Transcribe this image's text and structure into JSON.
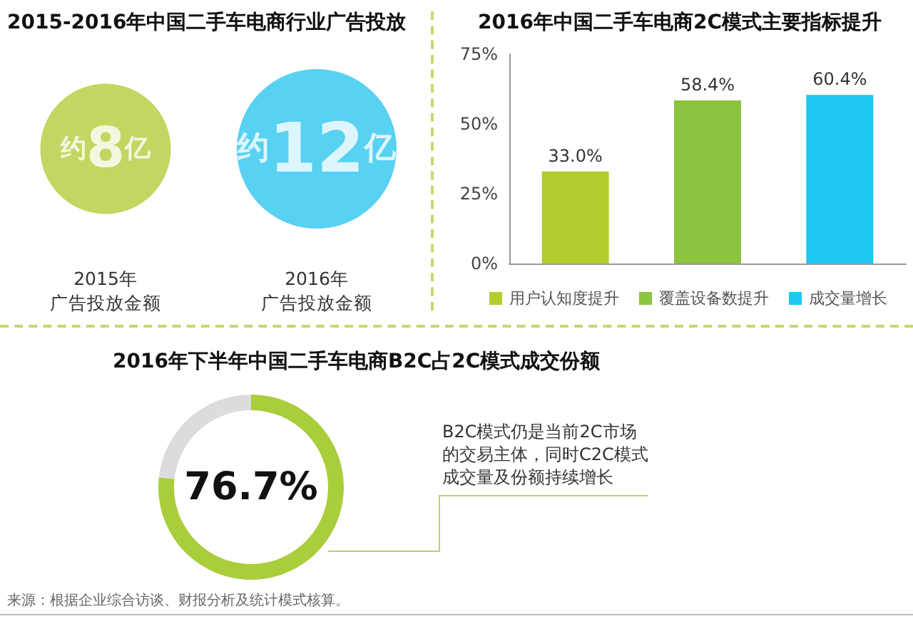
{
  "chart_data": [
    {
      "type": "other",
      "title": "2015-2016年中国二手车电商行业广告投放",
      "categories": [
        "2015年广告投放金额",
        "2016年广告投放金额"
      ],
      "values": [
        8,
        12
      ],
      "value_labels": [
        "约8亿",
        "约12亿"
      ],
      "colors": [
        "#b3cd3a",
        "#2ec6f0"
      ]
    },
    {
      "type": "bar",
      "title": "2016年中国二手车电商2C模式主要指标提升",
      "categories": [
        null,
        null,
        null
      ],
      "series": [
        {
          "name": "用户认知度提升",
          "color": "#b3cd2e",
          "values": [
            33.0,
            null,
            null
          ],
          "value_labels": [
            "33.0%",
            null,
            null
          ]
        },
        {
          "name": "覆盖设备数提升",
          "color": "#8cc43f",
          "values": [
            null,
            58.4,
            null
          ],
          "value_labels": [
            null,
            "58.4%",
            null
          ]
        },
        {
          "name": "成交量增长",
          "color": "#1ec6f0",
          "values": [
            null,
            null,
            60.4
          ],
          "value_labels": [
            null,
            null,
            "60.4%"
          ]
        }
      ],
      "ylim": [
        0,
        75
      ],
      "yticks": [
        {
          "value": 0,
          "label": "0%"
        },
        {
          "value": 25,
          "label": "25%"
        },
        {
          "value": 50,
          "label": "50%"
        },
        {
          "value": 75,
          "label": "75%"
        }
      ],
      "tick_labels": "y",
      "legend": "bottom"
    },
    {
      "type": "donut",
      "title": "2016年下半年中国二手车电商B2C占2C模式成交份额",
      "categories": [
        null,
        null
      ],
      "values": [
        76.7,
        23.3
      ],
      "colors": [
        "#a9cd3b",
        "#dcdcdc"
      ],
      "annotations": [
        "76.7%",
        "B2C模式仍是当前2C市场的交易主体，同时C2C模式成交量及份额持续增长",
        "来源：根据企业综合访谈、财报分析及统计模式核算。"
      ]
    }
  ]
}
